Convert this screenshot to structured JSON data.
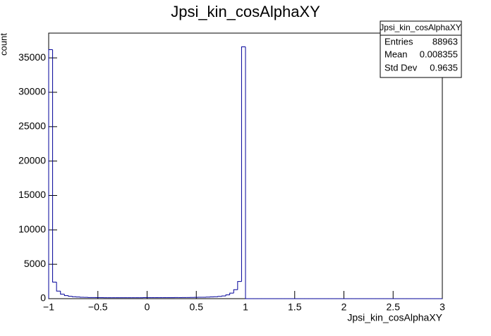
{
  "chart_data": {
    "type": "histogram",
    "title": "Jpsi_kin_cosAlphaXY",
    "xlabel": "Jpsi_kin_cosAlphaXY",
    "ylabel": "count",
    "color": "#000099",
    "bins": [
      -1,
      -0.96,
      -0.92,
      -0.88,
      -0.84,
      -0.8,
      -0.76,
      -0.72,
      -0.68,
      -0.64,
      -0.6,
      -0.56,
      -0.52,
      -0.48,
      -0.44,
      -0.4,
      -0.36,
      -0.32,
      -0.28,
      -0.24,
      -0.2,
      -0.16,
      -0.12,
      -0.08,
      -0.04,
      0,
      0.04,
      0.08,
      0.12,
      0.16,
      0.2,
      0.24,
      0.28,
      0.32,
      0.36,
      0.4,
      0.44,
      0.48,
      0.52,
      0.56,
      0.6,
      0.64,
      0.68,
      0.72,
      0.76,
      0.8,
      0.84,
      0.88,
      0.92,
      0.96,
      1,
      1.04,
      1.08,
      1.12,
      1.16,
      1.2,
      1.24,
      1.28,
      1.32,
      1.36,
      1.4,
      1.44,
      1.48,
      1.52,
      1.56,
      1.6,
      1.64,
      1.68,
      1.72,
      1.76,
      1.8,
      1.84,
      1.88,
      1.92,
      1.96,
      2,
      2.04,
      2.08,
      2.12,
      2.16,
      2.2,
      2.24,
      2.28,
      2.32,
      2.36,
      2.4,
      2.44,
      2.48,
      2.52,
      2.56,
      2.6,
      2.64,
      2.68,
      2.72,
      2.76,
      2.8,
      2.84,
      2.88,
      2.92,
      2.96,
      3
    ],
    "values": [
      36200,
      2400,
      1100,
      650,
      450,
      350,
      280,
      240,
      210,
      190,
      170,
      160,
      150,
      150,
      140,
      140,
      140,
      140,
      140,
      140,
      140,
      140,
      140,
      140,
      150,
      150,
      150,
      150,
      150,
      150,
      150,
      150,
      160,
      160,
      170,
      170,
      180,
      190,
      200,
      210,
      230,
      250,
      280,
      330,
      400,
      550,
      800,
      1300,
      2500,
      36600,
      0,
      0,
      0,
      0,
      0,
      0,
      0,
      0,
      0,
      0,
      0,
      0,
      0,
      0,
      0,
      0,
      0,
      0,
      0,
      0,
      0,
      0,
      0,
      0,
      0,
      0,
      0,
      0,
      0,
      0,
      0,
      0,
      0,
      0,
      0,
      0,
      0,
      0,
      0,
      0,
      0,
      0,
      0,
      0,
      0,
      0,
      0,
      0,
      0,
      0
    ],
    "xlim": [
      -1,
      3
    ],
    "ylim": [
      0,
      38600
    ],
    "xticks": [
      {
        "value": -1,
        "label": "−1"
      },
      {
        "value": -0.5,
        "label": "−0.5"
      },
      0,
      0.5,
      1,
      1.5,
      2,
      2.5,
      3
    ],
    "yticks": [
      0,
      5000,
      10000,
      15000,
      20000,
      25000,
      30000,
      35000
    ],
    "stats": {
      "title": "Jpsi_kin_cosAlphaXY",
      "rows": [
        [
          "Entries",
          "88963"
        ],
        [
          "Mean",
          "0.008355"
        ],
        [
          "Std Dev",
          "0.9635"
        ]
      ]
    }
  }
}
